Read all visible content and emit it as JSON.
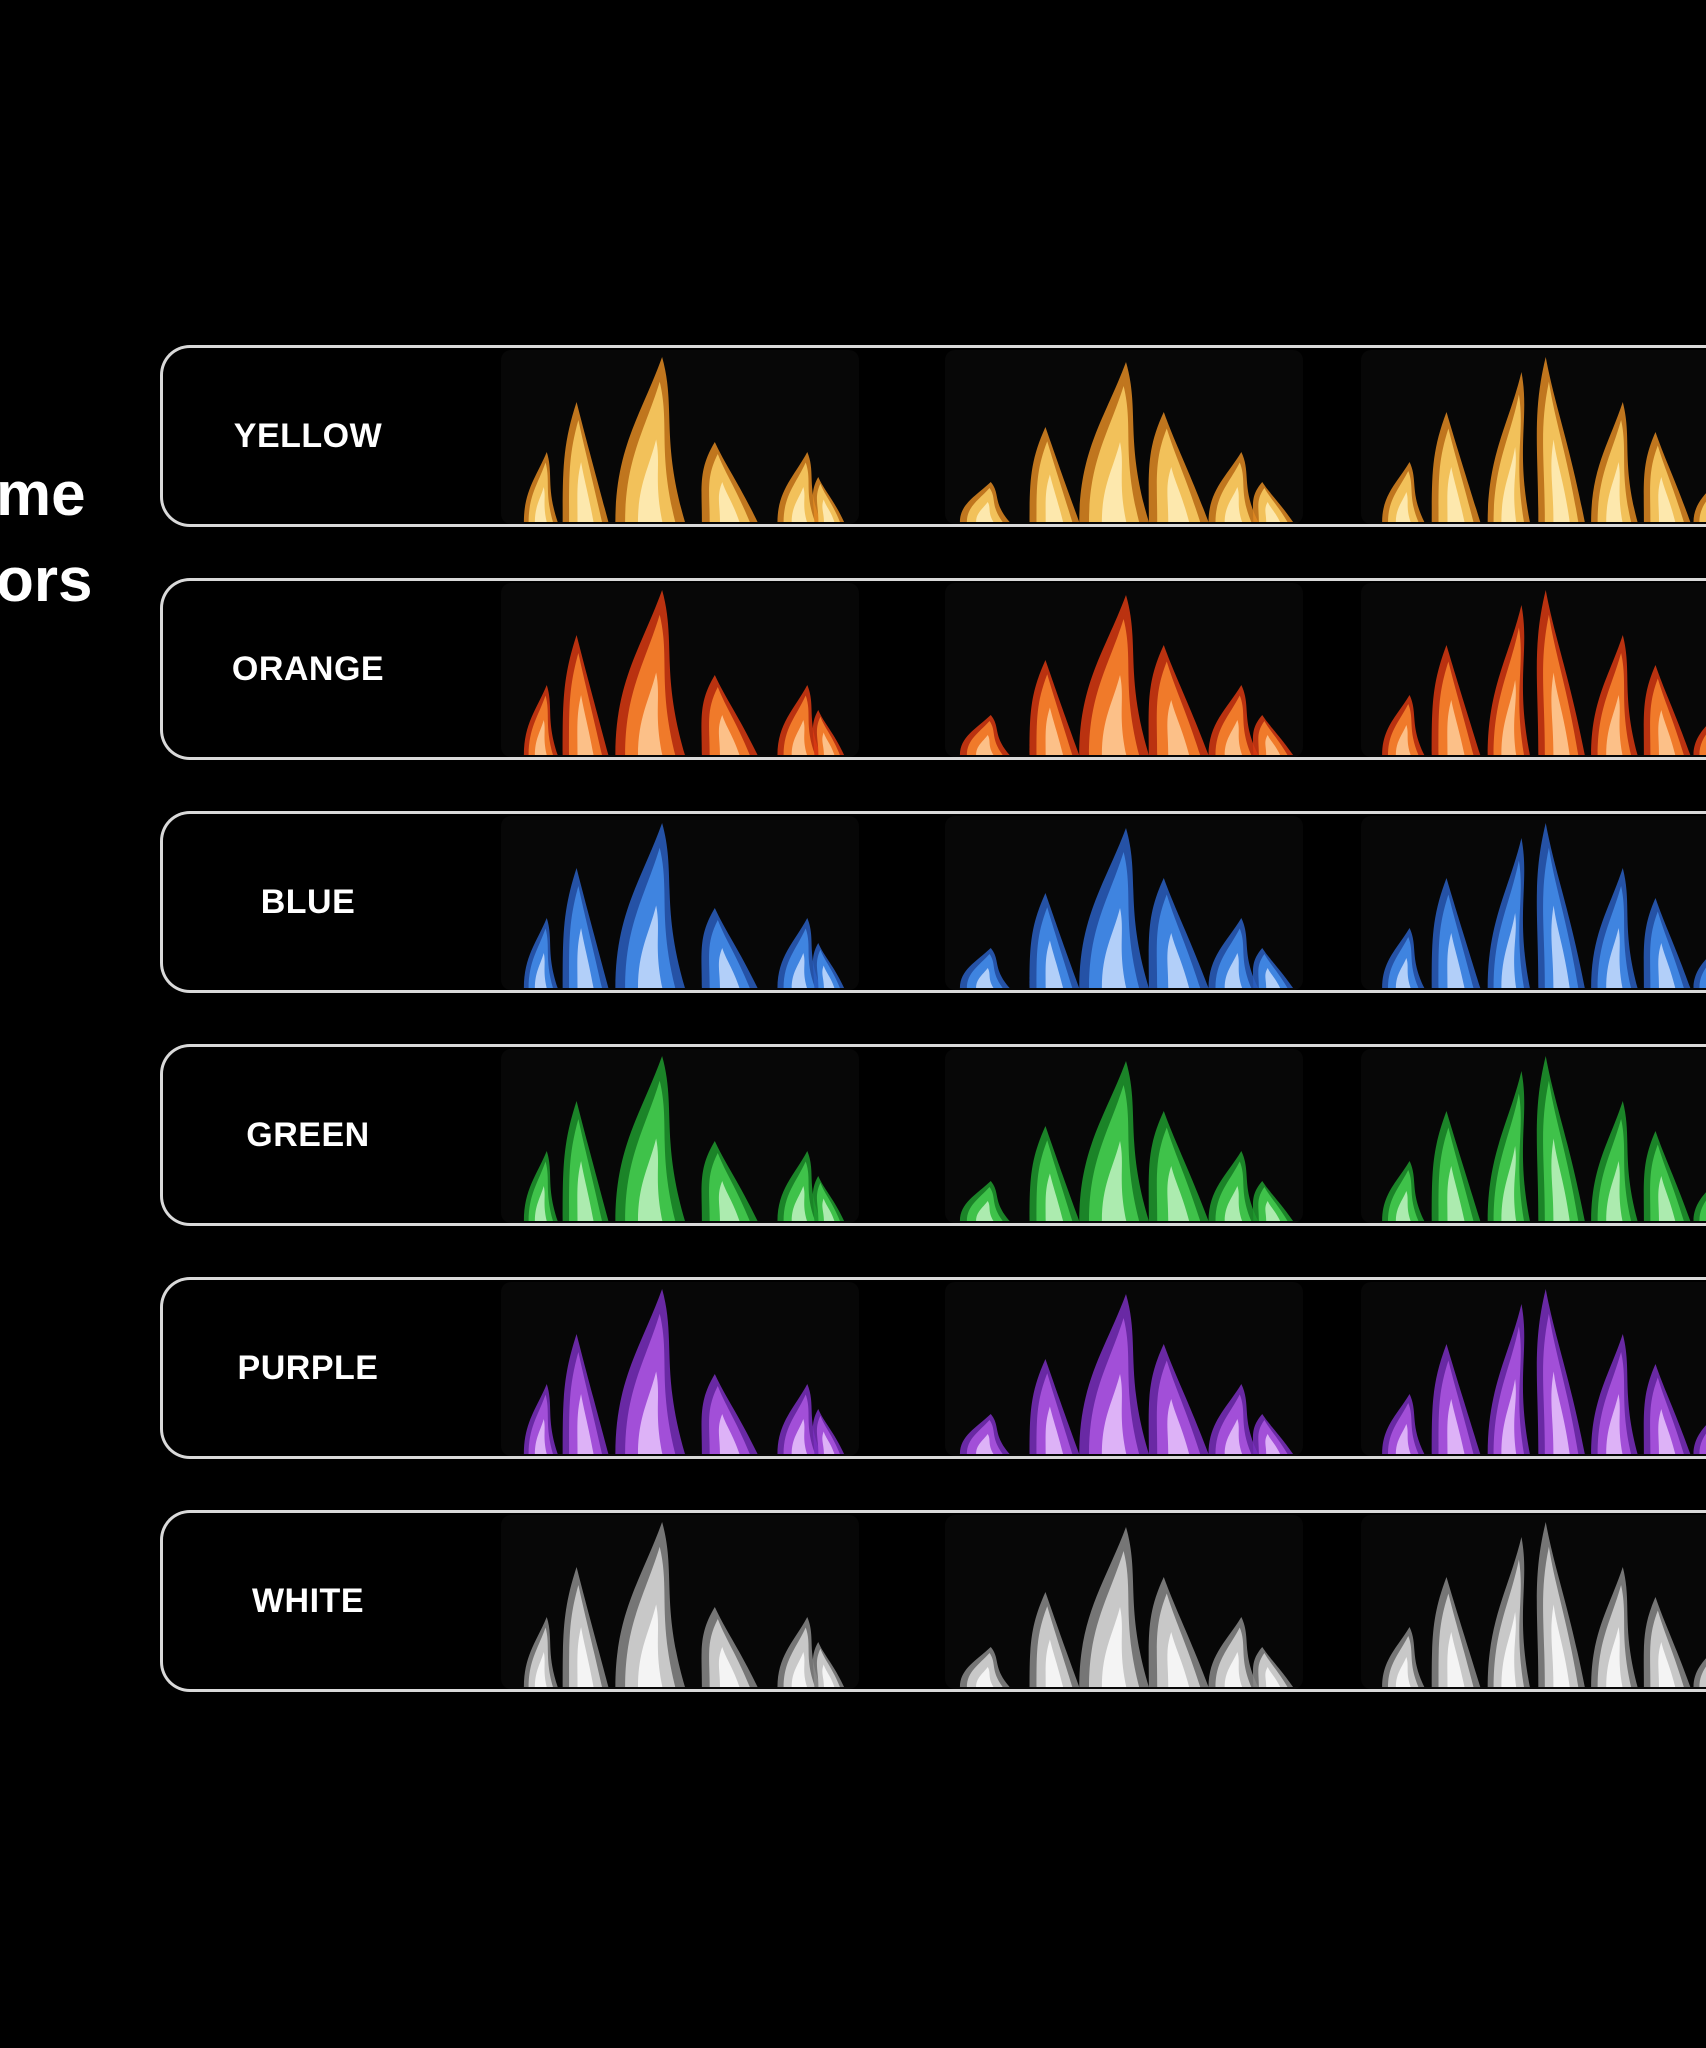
{
  "title": {
    "line1": "me",
    "line2": "ors"
  },
  "flame_colors": [
    {
      "label": "YELLOW",
      "color": "#f2c15a",
      "core": "#fff1c2",
      "edge": "#e08a22"
    },
    {
      "label": "ORANGE",
      "color": "#f07a2a",
      "core": "#ffd2a0",
      "edge": "#d93a12"
    },
    {
      "label": "BLUE",
      "color": "#3f84e0",
      "core": "#cfe2ff",
      "edge": "#2a5fc2"
    },
    {
      "label": "GREEN",
      "color": "#3fc24a",
      "core": "#c8f5c8",
      "edge": "#1f9a2e"
    },
    {
      "label": "PURPLE",
      "color": "#a24fd8",
      "core": "#eccaff",
      "edge": "#7a2fc0"
    },
    {
      "label": "WHITE",
      "color": "#c8c8c8",
      "core": "#ffffff",
      "edge": "#8a8a8a"
    }
  ]
}
